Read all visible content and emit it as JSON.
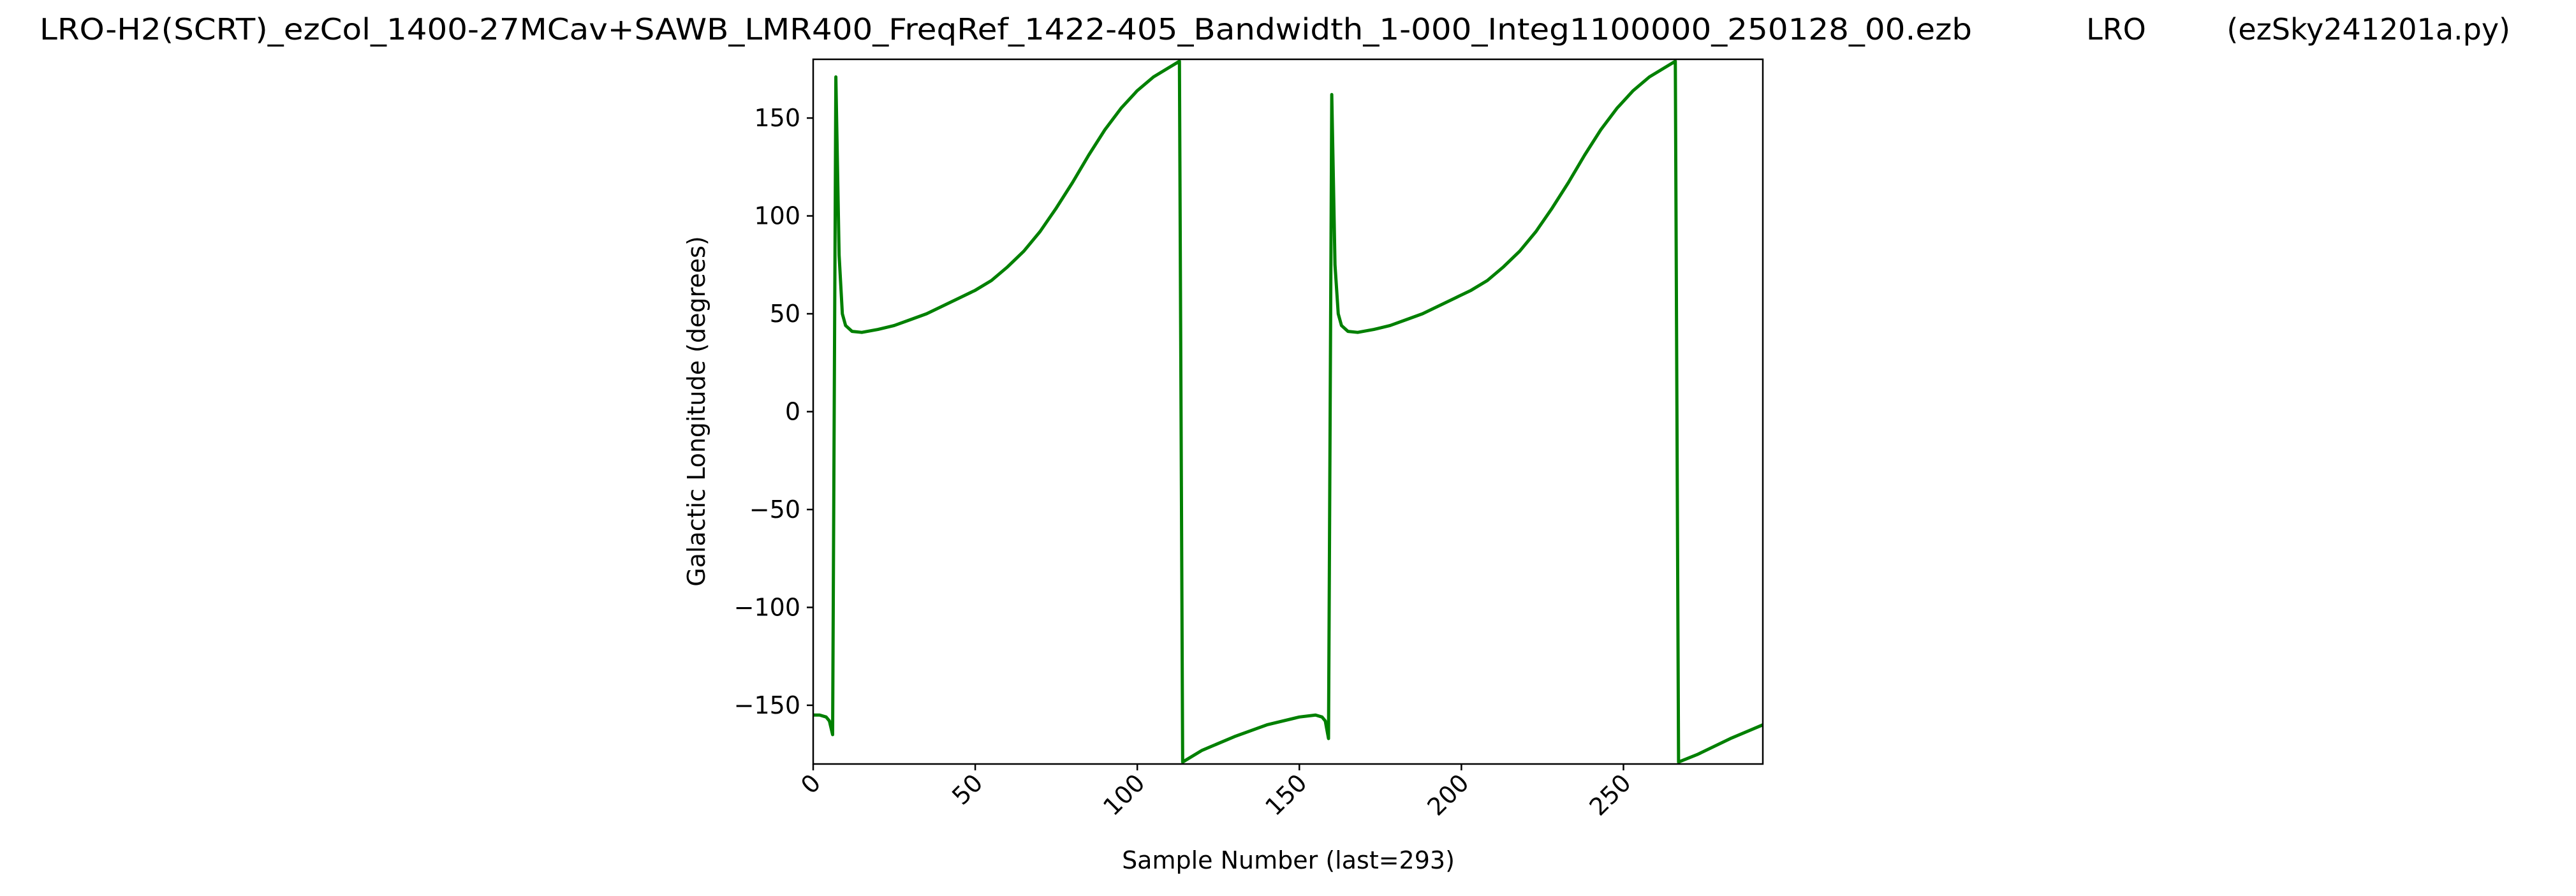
{
  "chart_data": {
    "type": "line",
    "title_left": "LRO-H2(SCRT)_ezCol_1400-27MCav+SAWB_LMR400_FreqRef_1422-405_Bandwidth_1-000_Integ1100000_250128_00.ezb",
    "title_center": "LRO",
    "title_right": "(ezSky241201a.py)",
    "xlabel": "Sample Number (last=293)",
    "ylabel": "Galactic Longitude (degrees)",
    "color": "#008000",
    "grid": false,
    "x": [
      0,
      2,
      4,
      5,
      6,
      7,
      8,
      9,
      10,
      12,
      15,
      20,
      25,
      30,
      35,
      40,
      45,
      50,
      55,
      60,
      65,
      70,
      75,
      80,
      85,
      90,
      95,
      100,
      105,
      110,
      113,
      114,
      120,
      130,
      140,
      150,
      155,
      157,
      158,
      159,
      160,
      161,
      162,
      163,
      165,
      168,
      173,
      178,
      183,
      188,
      193,
      198,
      203,
      208,
      213,
      218,
      223,
      228,
      233,
      238,
      243,
      248,
      253,
      258,
      263,
      266,
      267,
      273,
      283,
      293
    ],
    "values": [
      -155,
      -155,
      -156,
      -158,
      -165,
      171,
      80,
      50,
      44,
      41,
      40.5,
      42,
      44,
      47,
      50,
      54,
      58,
      62,
      67,
      74,
      82,
      92,
      104,
      117,
      131,
      144,
      155,
      164,
      171,
      176,
      179,
      -179,
      -173,
      -166,
      -160,
      -156,
      -155,
      -156,
      -158,
      -167,
      162,
      75,
      50,
      44,
      41,
      40.5,
      42,
      44,
      47,
      50,
      54,
      58,
      62,
      67,
      74,
      82,
      92,
      104,
      117,
      131,
      144,
      155,
      164,
      171,
      176,
      179,
      -179,
      -175,
      -167,
      -160
    ],
    "xlim": [
      0,
      293
    ],
    "xticks": [
      0,
      50,
      100,
      150,
      200,
      250
    ],
    "ylim": [
      -180,
      180
    ],
    "yticks": [
      {
        "value": -150,
        "label": "−150"
      },
      {
        "value": -100,
        "label": "−100"
      },
      {
        "value": -50,
        "label": "−50"
      },
      0,
      50,
      100,
      150
    ]
  }
}
